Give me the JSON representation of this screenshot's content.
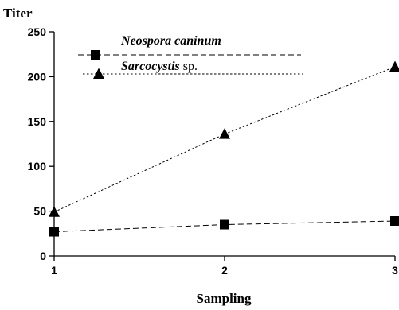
{
  "chart_data": {
    "type": "line",
    "ylabel": "Titer",
    "xlabel": "Sampling",
    "x": [
      1,
      2,
      3
    ],
    "xticks": [
      "1",
      "2",
      "3"
    ],
    "ylim": [
      0,
      250
    ],
    "yticks": [
      "0",
      "50",
      "100",
      "150",
      "200",
      "250"
    ],
    "grid": false,
    "legend_placement": "top-left",
    "series": [
      {
        "name_main": "Neospora caninum",
        "name_suffix": "",
        "marker": "square",
        "line_style": "dashed",
        "values": [
          27,
          35,
          39
        ]
      },
      {
        "name_main": "Sarcocystis",
        "name_suffix": " sp.",
        "marker": "triangle",
        "line_style": "dotted",
        "values": [
          49,
          136,
          211
        ]
      }
    ]
  }
}
